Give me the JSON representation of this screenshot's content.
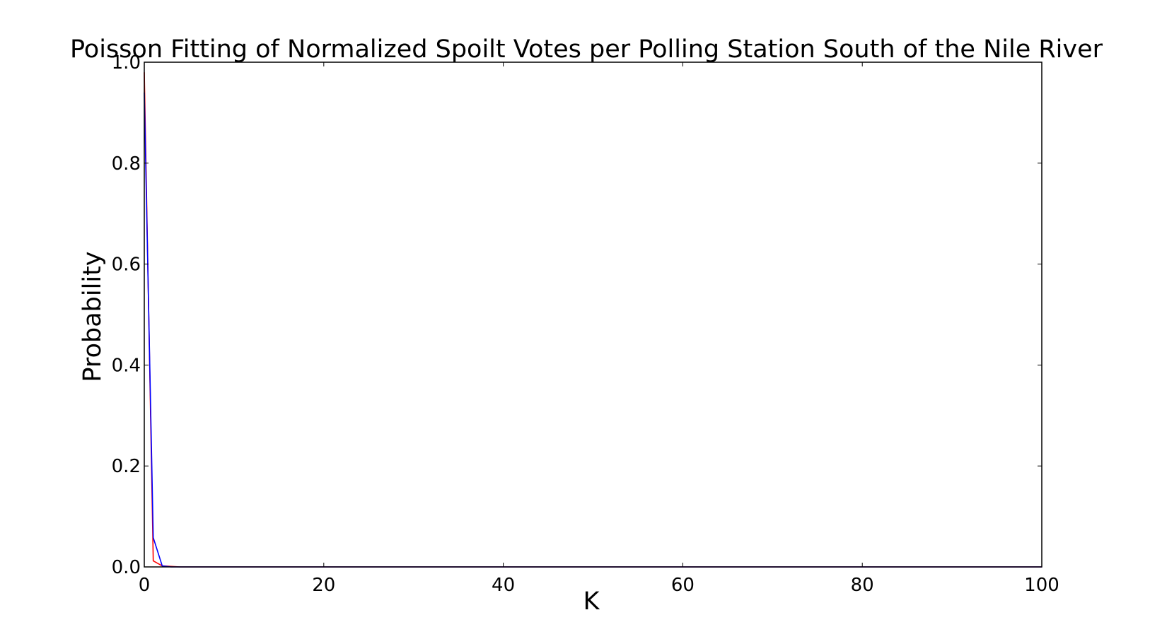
{
  "chart_data": {
    "type": "line",
    "title": "Poisson Fitting of Normalized Spoilt Votes per Polling Station South of the Nile River",
    "xlabel": "K",
    "ylabel": "Probability",
    "xlim": [
      0,
      100
    ],
    "ylim": [
      0,
      1.0
    ],
    "x_ticks": [
      0,
      20,
      40,
      60,
      80,
      100
    ],
    "x_tick_labels": [
      "0",
      "20",
      "40",
      "60",
      "80",
      "100"
    ],
    "y_ticks": [
      0.0,
      0.2,
      0.4,
      0.6,
      0.8,
      1.0
    ],
    "y_tick_labels": [
      "0.0",
      "0.2",
      "0.4",
      "0.6",
      "0.8",
      "1.0"
    ],
    "grid": false,
    "legend": false,
    "series": [
      {
        "color": "#ff0000",
        "x": [
          0,
          1,
          2,
          3,
          4,
          5,
          6,
          7,
          8,
          9,
          10,
          15,
          20,
          30,
          40,
          50,
          60,
          70,
          80,
          90,
          100
        ],
        "values": [
          0.98,
          0.012,
          0.002,
          0.001,
          0.0,
          0.0,
          0.0,
          0.0,
          0.0,
          0.0,
          0.0,
          0.0,
          0.0,
          0.0,
          0.0,
          0.0,
          0.0,
          0.0,
          0.0,
          0.0,
          0.0
        ]
      },
      {
        "color": "#0000ff",
        "x": [
          0,
          1,
          2,
          3,
          4,
          5,
          6,
          7,
          8,
          9,
          10,
          15,
          20,
          30,
          40,
          50,
          60,
          70,
          80,
          90,
          100
        ],
        "values": [
          0.94,
          0.058,
          0.002,
          0.0,
          0.0,
          0.0,
          0.0,
          0.0,
          0.0,
          0.0,
          0.0,
          0.0,
          0.0,
          0.0,
          0.0,
          0.0,
          0.0,
          0.0,
          0.0,
          0.0,
          0.0
        ]
      }
    ]
  }
}
